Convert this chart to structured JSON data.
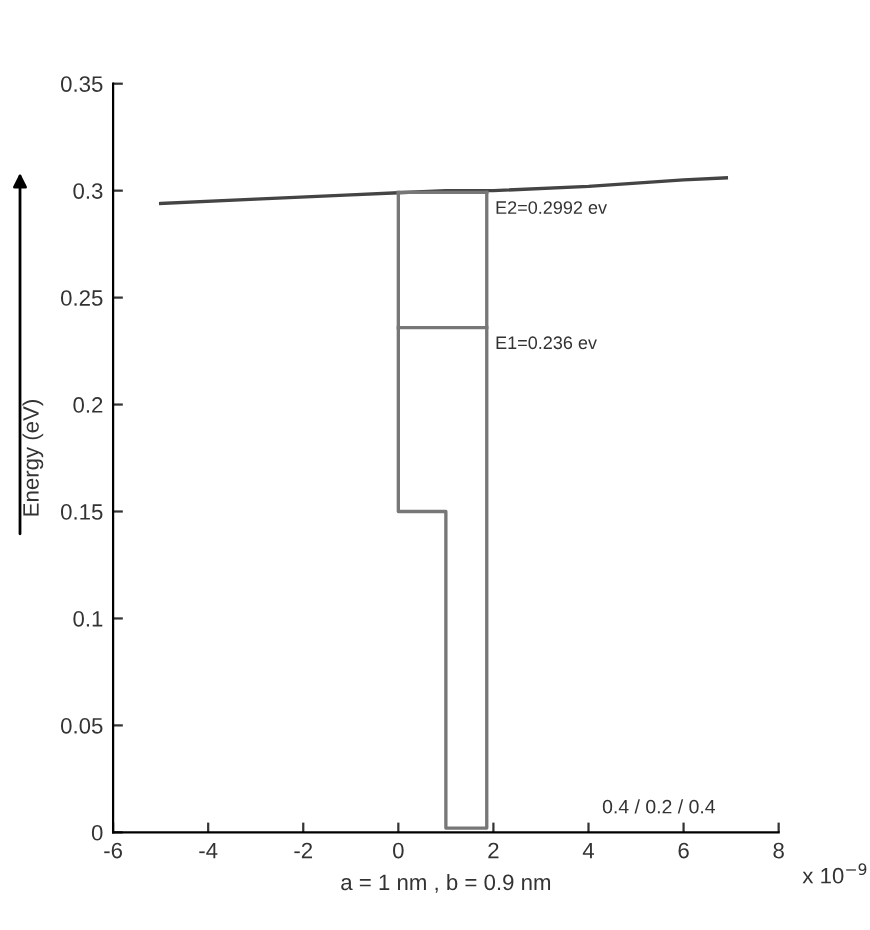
{
  "chart_data": {
    "type": "line",
    "xlabel": "a = 1 nm , b = 0.9 nm",
    "ylabel": "Energy (eV)",
    "series": [
      {
        "color": "#444444",
        "x": [
          -5.0,
          -3.0,
          -1.0,
          0.0,
          1.0,
          2.0,
          4.0,
          6.0,
          6.9
        ],
        "values": [
          0.294,
          0.296,
          0.298,
          0.299,
          0.3,
          0.3,
          0.302,
          0.305,
          0.306
        ]
      },
      {
        "type": "step",
        "color": "#777777",
        "x": [
          0,
          0,
          1.0,
          1.86
        ],
        "values": [
          0.2992,
          0.15,
          0.002,
          0.2992
        ]
      },
      {
        "color": "#777777",
        "x": [
          0,
          1.86
        ],
        "values": [
          0.2992,
          0.2992
        ]
      },
      {
        "color": "#777777",
        "x": [
          0,
          1.86
        ],
        "values": [
          0.236,
          0.236
        ]
      }
    ],
    "annotations": [
      {
        "text": "E2=0.2992 ev",
        "x": 1.86,
        "y": 0.2992
      },
      {
        "text": "E1=0.236 ev",
        "x": 1.86,
        "y": 0.236
      },
      "0.4 / 0.2 / 0.4",
      "x 10$^{−9}$"
    ],
    "xlim": [
      -6,
      8
    ],
    "xticks": [
      -6,
      -4,
      -2,
      0,
      2,
      4,
      6,
      8
    ],
    "ylim": [
      0,
      0.35
    ],
    "yticks": [
      0,
      0.05,
      0.1,
      0.15,
      0.2,
      0.25,
      0.3,
      0.35
    ],
    "grid": false,
    "legend": false,
    "marker": "none",
    "line_style": "solid"
  }
}
